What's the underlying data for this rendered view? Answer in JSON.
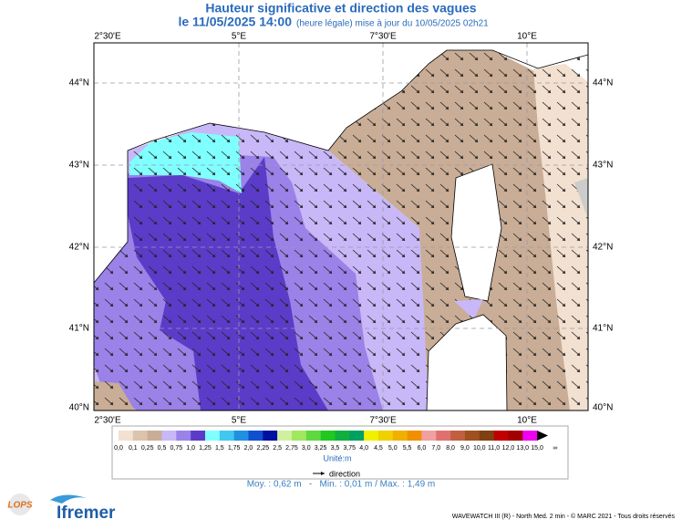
{
  "header": {
    "title": "Hauteur significative et direction des vagues",
    "date": "le 11/05/2025 14:00",
    "subtitle": "(heure légale) mise à jour du 10/05/2025 02h21"
  },
  "map": {
    "longitude_labels": [
      "2°30'E",
      "5°E",
      "7°30'E",
      "10°E"
    ],
    "latitude_labels": [
      "44°N",
      "43°N",
      "42°N",
      "41°N",
      "40°N"
    ]
  },
  "legend": {
    "labels": [
      "0,0",
      "0,1",
      "0,25",
      "0,5",
      "0,75",
      "1,0",
      "1,25",
      "1,5",
      "1,75",
      "2,0",
      "2,25",
      "2,5",
      "2,75",
      "3,0",
      "3,25",
      "3,5",
      "3,75",
      "4,0",
      "4,5",
      "5,0",
      "5,5",
      "6,0",
      "7,0",
      "8,0",
      "9,0",
      "10,0",
      "11,0",
      "12,0",
      "13,0",
      "15,0",
      "∞"
    ],
    "colors": [
      "#f2e0d0",
      "#dcc3ad",
      "#c9ad96",
      "#c8b8f8",
      "#9a82e8",
      "#5a3cc8",
      "#80ffff",
      "#40c8f0",
      "#2090e0",
      "#1050d0",
      "#0010a0",
      "#d0f0a0",
      "#a0e860",
      "#60d840",
      "#20c820",
      "#10b040",
      "#00a060",
      "#f0f000",
      "#f0d000",
      "#f0b000",
      "#f09000",
      "#f0a0a0",
      "#e07070",
      "#c06040",
      "#a05020",
      "#804010",
      "#c00000",
      "#a00000",
      "#f000f0",
      "#000000"
    ],
    "unit": "Unité:m",
    "direction": "direction",
    "stats": "Moy. : 0,62 m   -   Min. : 0,01 m / Max. : 1,49 m"
  },
  "footer": {
    "logo_lops": "LOPS",
    "logo_ifremer": "Ifremer",
    "credits": "WAVEWATCH III (R) - North Med. 2 min - © MARC 2021 - Tous droits réservés"
  }
}
